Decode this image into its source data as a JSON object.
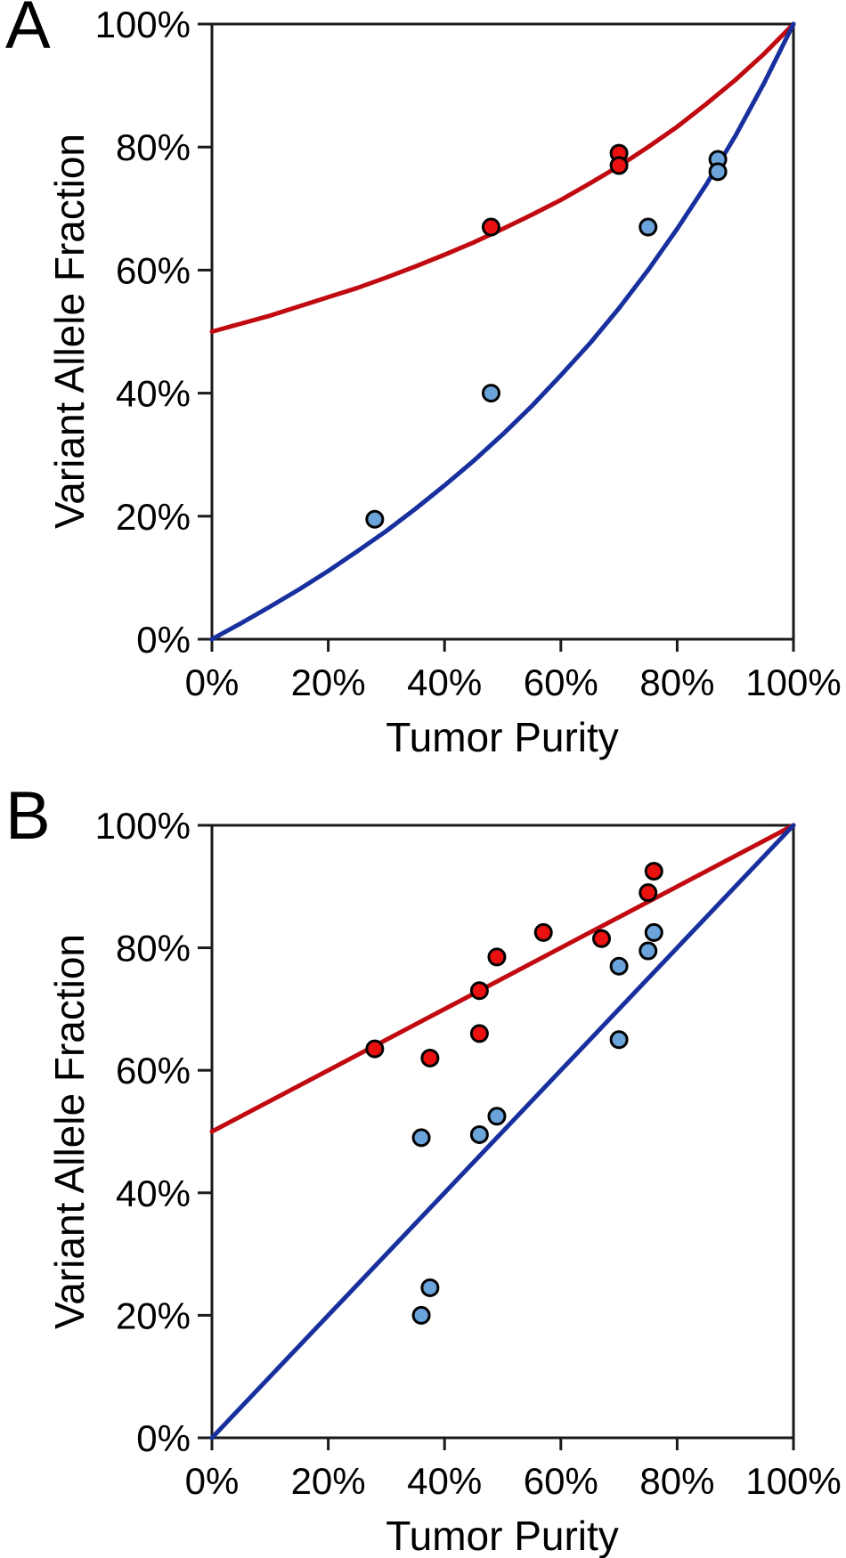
{
  "figure": {
    "panel_labels": [
      "A",
      "B"
    ],
    "background_color": "#ffffff",
    "axis_color": "#1a1a1a"
  },
  "chart_data": [
    {
      "type": "scatter",
      "panel_label": "A",
      "xlabel": "Tumor Purity",
      "ylabel": "Variant Allele Fraction",
      "xlim": [
        0,
        100
      ],
      "ylim": [
        0,
        100
      ],
      "grid": false,
      "legend": null,
      "x_tick_values": [
        0,
        20,
        40,
        60,
        80,
        100
      ],
      "x_tick_labels": [
        "0%",
        "20%",
        "40%",
        "60%",
        "80%",
        "100%"
      ],
      "y_tick_values": [
        0,
        20,
        40,
        60,
        80,
        100
      ],
      "y_tick_labels": [
        "0%",
        "20%",
        "40%",
        "60%",
        "80%",
        "100%"
      ],
      "series": [
        {
          "name": "red-series",
          "marker_color": "#EC1111",
          "marker_outline": "#000000",
          "points": [
            [
              48,
              67
            ],
            [
              70,
              79
            ],
            [
              70,
              77
            ]
          ]
        },
        {
          "name": "blue-series",
          "marker_color": "#6BA4DB",
          "marker_outline": "#000000",
          "points": [
            [
              28,
              19.5
            ],
            [
              48,
              40
            ],
            [
              75,
              67
            ],
            [
              87,
              78
            ],
            [
              87,
              76
            ]
          ]
        }
      ],
      "curves": [
        {
          "name": "red-curve",
          "color": "#C00A10",
          "formula": "VAF = 1 / (2 - purity)",
          "x": [
            0,
            5,
            10,
            15,
            20,
            25,
            30,
            35,
            40,
            45,
            50,
            55,
            60,
            65,
            70,
            75,
            80,
            85,
            90,
            95,
            100
          ],
          "y": [
            50.0,
            51.3,
            52.6,
            54.1,
            55.6,
            57.1,
            58.8,
            60.6,
            62.5,
            64.5,
            66.7,
            69.0,
            71.4,
            74.1,
            76.9,
            80.0,
            83.3,
            87.0,
            90.9,
            95.2,
            100.0
          ]
        },
        {
          "name": "blue-curve",
          "color": "#182F9E",
          "formula": "VAF = purity / (2 - purity)",
          "x": [
            0,
            5,
            10,
            15,
            20,
            25,
            30,
            35,
            40,
            45,
            50,
            55,
            60,
            65,
            70,
            75,
            80,
            85,
            90,
            95,
            100
          ],
          "y": [
            0.0,
            2.6,
            5.3,
            8.1,
            11.1,
            14.3,
            17.6,
            21.2,
            25.0,
            29.0,
            33.3,
            37.9,
            42.9,
            48.1,
            53.8,
            60.0,
            66.7,
            73.9,
            81.8,
            90.5,
            100.0
          ]
        }
      ]
    },
    {
      "type": "scatter",
      "panel_label": "B",
      "xlabel": "Tumor Purity",
      "ylabel": "Variant Allele Fraction",
      "xlim": [
        0,
        100
      ],
      "ylim": [
        0,
        100
      ],
      "grid": false,
      "legend": null,
      "x_tick_values": [
        0,
        20,
        40,
        60,
        80,
        100
      ],
      "x_tick_labels": [
        "0%",
        "20%",
        "40%",
        "60%",
        "80%",
        "100%"
      ],
      "y_tick_values": [
        0,
        20,
        40,
        60,
        80,
        100
      ],
      "y_tick_labels": [
        "0%",
        "20%",
        "40%",
        "60%",
        "80%",
        "100%"
      ],
      "series": [
        {
          "name": "red-series",
          "marker_color": "#EC1111",
          "marker_outline": "#000000",
          "points": [
            [
              28,
              63.5
            ],
            [
              37.5,
              62
            ],
            [
              46,
              66
            ],
            [
              46,
              73
            ],
            [
              49,
              78.5
            ],
            [
              57,
              82.5
            ],
            [
              67,
              81.5
            ],
            [
              75,
              89
            ],
            [
              76,
              92.5
            ]
          ]
        },
        {
          "name": "blue-series",
          "marker_color": "#6BA4DB",
          "marker_outline": "#000000",
          "points": [
            [
              36,
              20
            ],
            [
              37.5,
              24.5
            ],
            [
              36,
              49
            ],
            [
              46,
              49.5
            ],
            [
              49,
              52.5
            ],
            [
              70,
              65
            ],
            [
              70,
              77
            ],
            [
              75,
              79.5
            ],
            [
              76,
              82.5
            ]
          ]
        }
      ],
      "curves": [
        {
          "name": "red-curve",
          "color": "#C00A10",
          "formula": "VAF = (1 + purity) / 2",
          "x": [
            0,
            100
          ],
          "y": [
            50,
            100
          ]
        },
        {
          "name": "blue-curve",
          "color": "#182F9E",
          "formula": "VAF = purity",
          "x": [
            0,
            100
          ],
          "y": [
            0,
            100
          ]
        }
      ]
    }
  ]
}
